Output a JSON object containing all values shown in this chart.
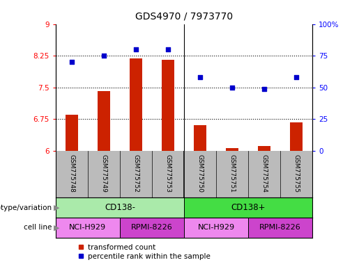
{
  "title": "GDS4970 / 7973770",
  "samples": [
    "GSM775748",
    "GSM775749",
    "GSM775752",
    "GSM775753",
    "GSM775750",
    "GSM775751",
    "GSM775754",
    "GSM775755"
  ],
  "bar_values": [
    6.85,
    7.42,
    8.19,
    8.15,
    6.61,
    6.07,
    6.12,
    6.67
  ],
  "scatter_values": [
    70,
    75,
    80,
    80,
    58,
    50,
    49,
    58
  ],
  "bar_color": "#cc2200",
  "scatter_color": "#0000cc",
  "ylim_left": [
    6,
    9
  ],
  "ylim_right": [
    0,
    100
  ],
  "yticks_left": [
    6,
    6.75,
    7.5,
    8.25,
    9
  ],
  "yticks_right": [
    0,
    25,
    50,
    75,
    100
  ],
  "hlines": [
    6.75,
    7.5,
    8.25
  ],
  "genotype_groups": [
    {
      "label": "CD138-",
      "start": 0,
      "end": 4,
      "color": "#aaeaaa"
    },
    {
      "label": "CD138+",
      "start": 4,
      "end": 8,
      "color": "#44dd44"
    }
  ],
  "cell_line_groups": [
    {
      "label": "NCI-H929",
      "start": 0,
      "end": 2,
      "color": "#ee88ee"
    },
    {
      "label": "RPMI-8226",
      "start": 2,
      "end": 4,
      "color": "#cc44cc"
    },
    {
      "label": "NCI-H929",
      "start": 4,
      "end": 6,
      "color": "#ee88ee"
    },
    {
      "label": "RPMI-8226",
      "start": 6,
      "end": 8,
      "color": "#cc44cc"
    }
  ],
  "legend_bar_label": "transformed count",
  "legend_scatter_label": "percentile rank within the sample",
  "genotype_label": "genotype/variation",
  "cell_line_label": "cell line",
  "sample_bg_color": "#bbbbbb",
  "bar_width": 0.4
}
